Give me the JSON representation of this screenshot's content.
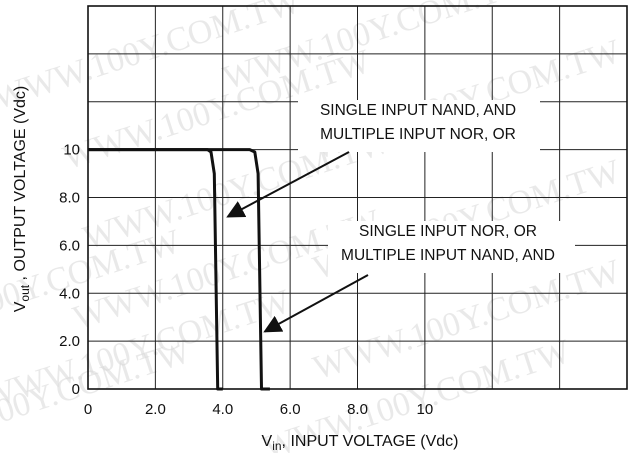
{
  "chart_data": {
    "type": "line",
    "title": "",
    "xlabel": {
      "main": "V",
      "sub": "in",
      "rest": ", INPUT VOLTAGE (Vdc)"
    },
    "ylabel": {
      "main": "V",
      "sub": "out",
      "rest": " , OUTPUT VOLTAGE (Vdc)"
    },
    "xlim": [
      0,
      16
    ],
    "ylim": [
      0,
      16
    ],
    "grid": true,
    "x_ticks": [
      "0",
      "2.0",
      "4.0",
      "6.0",
      "8.0",
      "10"
    ],
    "y_ticks": [
      "0",
      "2.0",
      "4.0",
      "6.0",
      "8.0",
      "10"
    ],
    "series": [
      {
        "x": [
          0,
          3.55,
          3.65,
          3.75,
          3.85,
          4.0
        ],
        "y": [
          10,
          10,
          9.9,
          9.0,
          0,
          0
        ]
      },
      {
        "x": [
          0,
          4.8,
          4.95,
          5.05,
          5.15,
          5.4
        ],
        "y": [
          10,
          10,
          9.9,
          9.0,
          0,
          0
        ]
      }
    ],
    "annotations": [
      {
        "lines": [
          "SINGLE INPUT NAND, AND",
          "MULTIPLE INPUT NOR, OR"
        ],
        "arrow_to": {
          "x": 4.15,
          "y": 7.2
        }
      },
      {
        "lines": [
          "SINGLE INPUT NOR, OR",
          "MULTIPLE INPUT NAND, AND"
        ],
        "arrow_to": {
          "x": 5.25,
          "y": 2.4
        }
      }
    ]
  },
  "watermark": "WWW.100Y.COM.TW"
}
